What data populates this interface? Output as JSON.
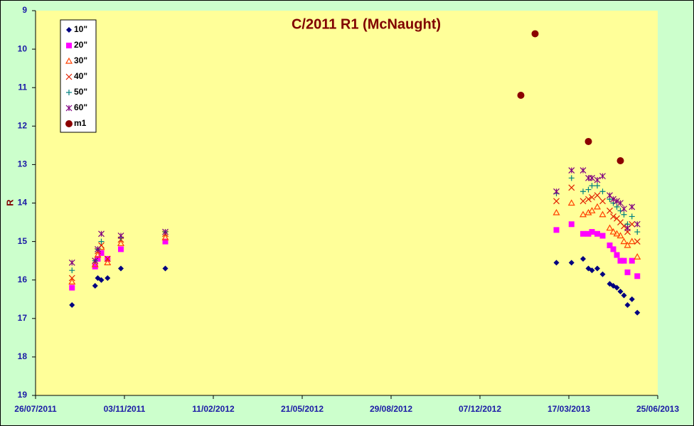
{
  "chart_data": {
    "type": "scatter",
    "title": "C/2011 R1 (McNaught)",
    "y_label": "R",
    "y_inverted": true,
    "xlim": [
      "2011-07-26",
      "2013-06-25"
    ],
    "xticks": [
      {
        "value": "2011-07-26",
        "label": "26/07/2011"
      },
      {
        "value": "2011-11-03",
        "label": "03/11/2011"
      },
      {
        "value": "2012-02-11",
        "label": "11/02/2012"
      },
      {
        "value": "2012-05-21",
        "label": "21/05/2012"
      },
      {
        "value": "2012-08-29",
        "label": "29/08/2012"
      },
      {
        "value": "2012-12-07",
        "label": "07/12/2012"
      },
      {
        "value": "2013-03-17",
        "label": "17/03/2013"
      },
      {
        "value": "2013-06-25",
        "label": "25/06/2013"
      }
    ],
    "ylim": [
      9,
      19
    ],
    "yticks": [
      9,
      10,
      11,
      12,
      13,
      14,
      15,
      16,
      17,
      18,
      19
    ],
    "x": [
      "2011-09-05",
      "2011-10-01",
      "2011-10-04",
      "2011-10-08",
      "2011-10-15",
      "2011-10-30",
      "2011-12-19",
      "2013-03-03",
      "2013-03-20",
      "2013-04-02",
      "2013-04-08",
      "2013-04-12",
      "2013-04-18",
      "2013-04-24",
      "2013-05-02",
      "2013-05-06",
      "2013-05-10",
      "2013-05-14",
      "2013-05-18",
      "2013-05-22",
      "2013-05-27",
      "2013-06-02"
    ],
    "series": [
      {
        "name": "10\"",
        "color": "#000080",
        "marker": "diamond",
        "values": [
          16.65,
          16.15,
          15.95,
          16.0,
          15.95,
          15.7,
          15.7,
          15.55,
          15.55,
          15.45,
          15.7,
          15.75,
          15.7,
          15.85,
          16.1,
          16.15,
          16.2,
          16.3,
          16.4,
          16.65,
          16.5,
          16.85
        ]
      },
      {
        "name": "20\"",
        "color": "#ff00ff",
        "marker": "square",
        "values": [
          16.2,
          15.65,
          15.45,
          15.3,
          15.45,
          15.2,
          15.0,
          14.7,
          14.55,
          14.8,
          14.8,
          14.75,
          14.8,
          14.85,
          15.1,
          15.2,
          15.35,
          15.5,
          15.5,
          15.8,
          15.5,
          15.9
        ]
      },
      {
        "name": "30\"",
        "color": "#ff4000",
        "marker": "triangle",
        "values": [
          16.05,
          15.6,
          15.35,
          15.15,
          15.55,
          15.05,
          14.9,
          14.25,
          14.0,
          14.3,
          14.25,
          14.2,
          14.1,
          14.3,
          14.65,
          14.75,
          14.8,
          14.85,
          15.0,
          15.1,
          15.0,
          15.4
        ]
      },
      {
        "name": "40\"",
        "color": "#e02000",
        "marker": "cross",
        "values": [
          15.95,
          15.5,
          15.25,
          15.1,
          15.45,
          14.95,
          14.8,
          13.95,
          13.6,
          13.95,
          13.9,
          13.85,
          13.8,
          13.95,
          14.2,
          14.35,
          14.4,
          14.5,
          14.6,
          14.75,
          14.55,
          15.0
        ]
      },
      {
        "name": "50\"",
        "color": "#008080",
        "marker": "plus",
        "values": [
          15.75,
          15.5,
          15.2,
          15.0,
          null,
          14.9,
          14.75,
          13.75,
          13.35,
          13.7,
          13.65,
          13.55,
          13.55,
          13.7,
          13.9,
          14.0,
          14.1,
          14.2,
          14.3,
          14.55,
          14.35,
          14.75
        ]
      },
      {
        "name": "60\"",
        "color": "#800080",
        "marker": "star",
        "values": [
          15.55,
          15.5,
          15.2,
          14.8,
          null,
          14.85,
          14.75,
          13.7,
          13.15,
          13.15,
          13.35,
          13.35,
          13.4,
          13.3,
          13.8,
          13.9,
          13.95,
          14.0,
          14.15,
          14.65,
          14.1,
          14.55
        ]
      },
      {
        "name": "m1",
        "color": "#8b0000",
        "marker": "circle",
        "x": [
          "2013-01-22",
          "2013-02-07",
          "2013-04-08",
          "2013-05-14"
        ],
        "values": [
          11.2,
          9.6,
          12.4,
          12.9
        ]
      }
    ]
  }
}
